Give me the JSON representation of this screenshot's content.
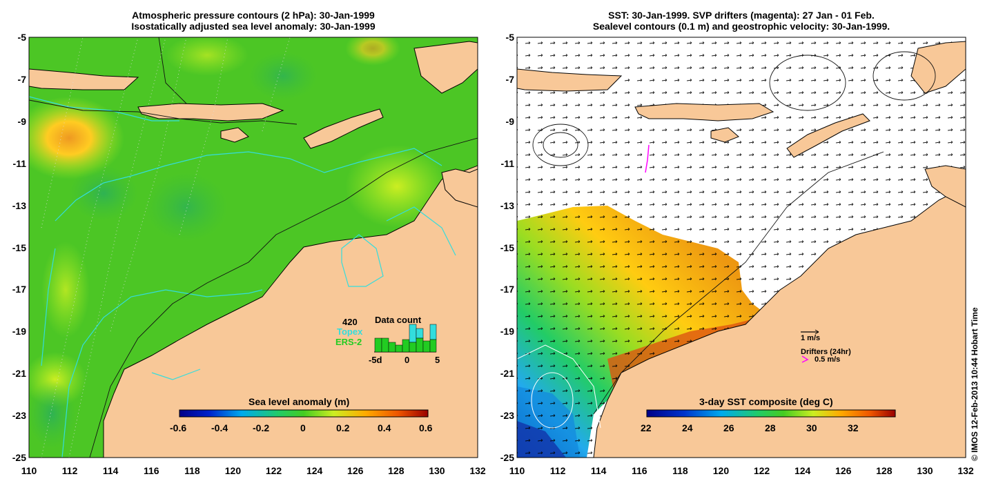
{
  "left_panel": {
    "title_line1": "Atmospheric pressure contours (2 hPa): 30-Jan-1999",
    "title_line2": "Isostatically adjusted sea level anomaly: 30-Jan-1999",
    "colorbar_label": "Sea level anomaly (m)",
    "colorbar_ticks": [
      "-0.6",
      "-0.4",
      "-0.2",
      "0",
      "0.2",
      "0.4",
      "0.6"
    ],
    "data_count": {
      "count": "420",
      "title": "Data count",
      "topex_label": "Topex",
      "ers_label": "ERS-2",
      "x_ticks": [
        "-5d",
        "0",
        "5"
      ],
      "colors": {
        "topex": "#33dddd",
        "ers": "#22cc22"
      }
    }
  },
  "right_panel": {
    "title_line1": "SST: 30-Jan-1999. SVP drifters (magenta): 27 Jan - 01 Feb.",
    "title_line2": "Sealevel contours (0.1 m) and geostrophic velocity: 30-Jan-1999.",
    "colorbar_label": "3-day SST composite (deg C)",
    "colorbar_ticks": [
      "22",
      "24",
      "26",
      "28",
      "30",
      "32"
    ],
    "velocity_scale": "1 m/s",
    "drifters_label": "Drifters (24hr)",
    "drifter_scale": "0.5 m/s",
    "drifter_color": "#ff00ff"
  },
  "axes": {
    "x_ticks": [
      "110",
      "112",
      "114",
      "116",
      "118",
      "120",
      "122",
      "124",
      "126",
      "128",
      "130",
      "132"
    ],
    "y_ticks": [
      "-5",
      "-7",
      "-9",
      "-11",
      "-13",
      "-15",
      "-17",
      "-19",
      "-21",
      "-23",
      "-25"
    ]
  },
  "colors": {
    "land": "#f8c898",
    "ocean_mid": "#44cc22",
    "cyan_lines": "#33dddd"
  },
  "credit": "© IMOS 12-Feb-2013 10:44 Hobart Time"
}
